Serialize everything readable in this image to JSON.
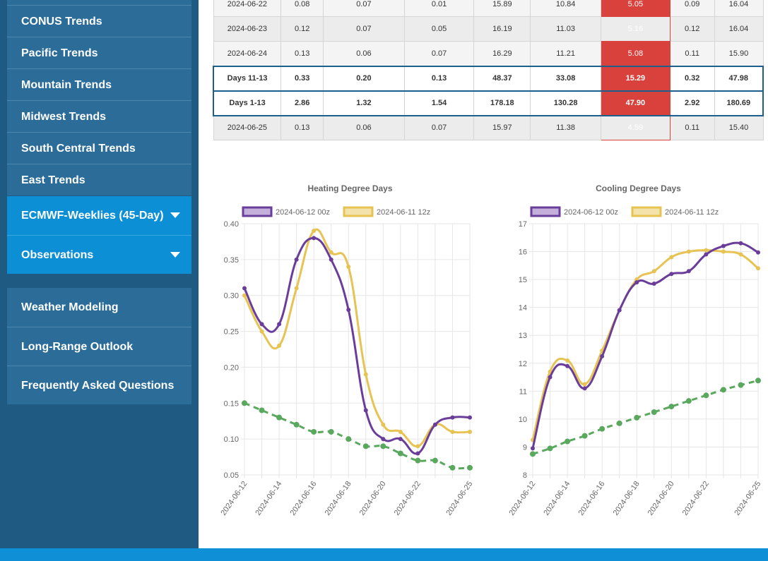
{
  "sidebar": {
    "group1": [
      "CONUS Trends",
      "Pacific Trends",
      "Mountain Trends",
      "Midwest Trends",
      "South Central Trends",
      "East Trends"
    ],
    "group2": [
      "ECMWF-Weeklies (45-Day)",
      "Observations"
    ],
    "group3": [
      "Weather Modeling",
      "Long-Range Outlook",
      "Frequently Asked Questions"
    ]
  },
  "table": {
    "rows": [
      {
        "label": "2024-06-22",
        "c": [
          "0.08",
          "0.07",
          "0.01",
          "15.89",
          "10.84",
          "5.05",
          "0.09",
          "16.04"
        ],
        "sum": false
      },
      {
        "label": "2024-06-23",
        "c": [
          "0.12",
          "0.07",
          "0.05",
          "16.19",
          "11.03",
          "5.16",
          "0.12",
          "16.04"
        ],
        "sum": false
      },
      {
        "label": "2024-06-24",
        "c": [
          "0.13",
          "0.06",
          "0.07",
          "16.29",
          "11.21",
          "5.08",
          "0.11",
          "15.90"
        ],
        "sum": false
      },
      {
        "label": "Days 11-13",
        "c": [
          "0.33",
          "0.20",
          "0.13",
          "48.37",
          "33.08",
          "15.29",
          "0.32",
          "47.98"
        ],
        "sum": true
      },
      {
        "label": "Days 1-13",
        "c": [
          "2.86",
          "1.32",
          "1.54",
          "178.18",
          "130.28",
          "47.90",
          "2.92",
          "180.69"
        ],
        "sum": true
      },
      {
        "label": "2024-06-25",
        "c": [
          "0.13",
          "0.06",
          "0.07",
          "15.97",
          "11.38",
          "4.59",
          "0.11",
          "15.40"
        ],
        "sum": false
      }
    ]
  },
  "chart_data": [
    {
      "type": "line",
      "title": "Heating Degree Days",
      "x": [
        "2024-06-12",
        "2024-06-13",
        "2024-06-14",
        "2024-06-15",
        "2024-06-16",
        "2024-06-17",
        "2024-06-18",
        "2024-06-19",
        "2024-06-20",
        "2024-06-21",
        "2024-06-22",
        "2024-06-23",
        "2024-06-24",
        "2024-06-25"
      ],
      "xticks": [
        "2024-06-12",
        "2024-06-14",
        "2024-06-16",
        "2024-06-18",
        "2024-06-20",
        "2024-06-22",
        "2024-06-25"
      ],
      "xtick_index": [
        0,
        2,
        4,
        6,
        8,
        10,
        13
      ],
      "ylim": [
        0.05,
        0.4
      ],
      "yticks": [
        "0.05",
        "0.10",
        "0.15",
        "0.20",
        "0.25",
        "0.30",
        "0.35",
        "0.40"
      ],
      "legend": "top",
      "series": [
        {
          "name": "2024-06-12 00z",
          "color": "#6a3d9a",
          "fill": "#c5b0dc",
          "values": [
            0.31,
            0.26,
            0.26,
            0.35,
            0.38,
            0.35,
            0.28,
            0.14,
            0.1,
            0.1,
            0.08,
            0.12,
            0.13,
            0.13
          ]
        },
        {
          "name": "2024-06-11 12z",
          "color": "#e6c352",
          "fill": "#f3e2a9",
          "values": [
            0.3,
            0.25,
            0.23,
            0.31,
            0.39,
            0.36,
            0.34,
            0.19,
            0.12,
            0.11,
            0.09,
            0.12,
            0.11,
            0.11
          ]
        },
        {
          "name": "",
          "color": "#5aa85e",
          "dashed": true,
          "values": [
            0.15,
            0.14,
            0.13,
            0.12,
            0.11,
            0.11,
            0.1,
            0.09,
            0.09,
            0.08,
            0.07,
            0.07,
            0.06,
            0.06
          ]
        }
      ]
    },
    {
      "type": "line",
      "title": "Cooling Degree Days",
      "x": [
        "2024-06-12",
        "2024-06-13",
        "2024-06-14",
        "2024-06-15",
        "2024-06-16",
        "2024-06-17",
        "2024-06-18",
        "2024-06-19",
        "2024-06-20",
        "2024-06-21",
        "2024-06-22",
        "2024-06-23",
        "2024-06-24",
        "2024-06-25"
      ],
      "xticks": [
        "2024-06-12",
        "2024-06-14",
        "2024-06-16",
        "2024-06-18",
        "2024-06-20",
        "2024-06-22",
        "2024-06-25"
      ],
      "xtick_index": [
        0,
        2,
        4,
        6,
        8,
        10,
        13
      ],
      "ylim": [
        8,
        17
      ],
      "yticks": [
        "8",
        "9",
        "10",
        "11",
        "12",
        "13",
        "14",
        "15",
        "16",
        "17"
      ],
      "legend": "top",
      "series": [
        {
          "name": "2024-06-12 00z",
          "color": "#6a3d9a",
          "fill": "#c5b0dc",
          "values": [
            8.95,
            11.5,
            11.9,
            11.1,
            12.25,
            13.9,
            14.9,
            14.85,
            15.2,
            15.3,
            15.9,
            16.2,
            16.3,
            15.97
          ]
        },
        {
          "name": "2024-06-11 12z",
          "color": "#e6c352",
          "fill": "#f3e2a9",
          "values": [
            9.25,
            11.7,
            12.1,
            11.25,
            12.45,
            13.9,
            15.0,
            15.3,
            15.8,
            16.0,
            16.05,
            16.0,
            15.9,
            15.4
          ]
        },
        {
          "name": "",
          "color": "#5aa85e",
          "dashed": true,
          "values": [
            8.75,
            8.95,
            9.2,
            9.4,
            9.65,
            9.85,
            10.05,
            10.25,
            10.45,
            10.65,
            10.85,
            11.05,
            11.22,
            11.38
          ]
        }
      ]
    }
  ],
  "colors": {
    "sidebar": "#1e5a82",
    "nav_active": "#0d8fd6",
    "hot_cell": "#d9413d"
  }
}
